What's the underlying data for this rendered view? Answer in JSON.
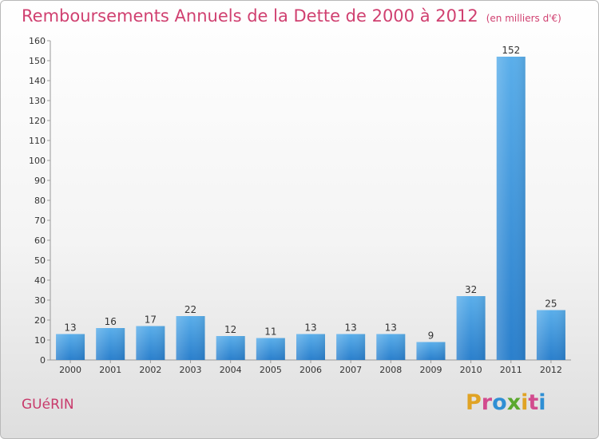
{
  "title": "Remboursements Annuels de la Dette de 2000 à 2012",
  "unit": "(en milliers d'€)",
  "commune": "GUéRIN",
  "logo": [
    "P",
    "r",
    "o",
    "x",
    "i",
    "t",
    "i"
  ],
  "chart_data": {
    "type": "bar",
    "categories": [
      "2000",
      "2001",
      "2002",
      "2003",
      "2004",
      "2005",
      "2006",
      "2007",
      "2008",
      "2009",
      "2010",
      "2011",
      "2012"
    ],
    "values": [
      13,
      16,
      17,
      22,
      12,
      11,
      13,
      13,
      13,
      9,
      32,
      152,
      25
    ],
    "ylim": [
      0,
      160
    ],
    "yticks": [
      0,
      10,
      20,
      30,
      40,
      50,
      60,
      70,
      80,
      90,
      100,
      110,
      120,
      130,
      140,
      150,
      160
    ],
    "xlabel": "",
    "ylabel": "",
    "grid": false,
    "colors": {
      "bar_light": "#5aaeea",
      "bar_dark": "#2a7fcc",
      "title": "#d04070",
      "axis": "#9a9a9a"
    }
  }
}
